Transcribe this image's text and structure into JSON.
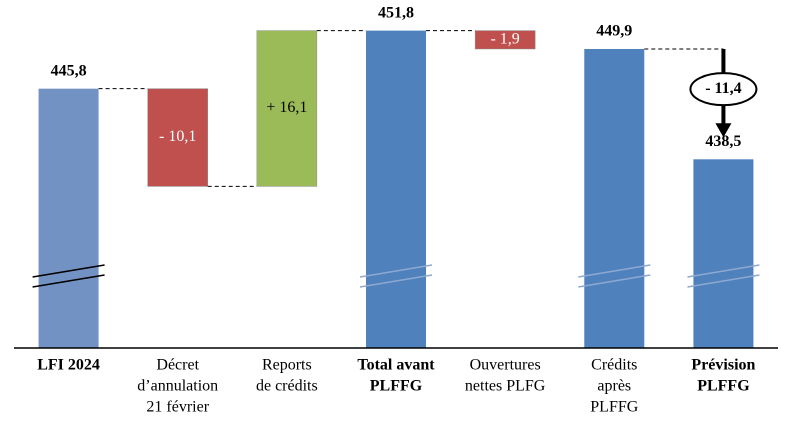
{
  "chart_data": {
    "type": "waterfall",
    "categories": [
      [
        "LFI 2024"
      ],
      [
        "Décret",
        "d’annulation",
        "21 février"
      ],
      [
        "Reports",
        "de crédits"
      ],
      [
        "Total avant",
        "PLFFG"
      ],
      [
        "Ouvertures",
        "nettes PLFG"
      ],
      [
        "Crédits",
        "après",
        "PLFFG"
      ],
      [
        "Prévision",
        "PLFFG"
      ]
    ],
    "measures": [
      "total",
      "relative",
      "relative",
      "total",
      "relative",
      "total",
      "total"
    ],
    "values": [
      445.8,
      -10.1,
      16.1,
      451.8,
      -1.9,
      449.9,
      438.5
    ],
    "value_labels": [
      "445,8",
      "- 10,1",
      "+ 16,1",
      "451,8",
      "- 1,9",
      "449,9",
      "438,5"
    ],
    "colors": [
      "#7192c2",
      "#c0504d",
      "#9bbb59",
      "#4f81bd",
      "#c0504d",
      "#4f81bd",
      "#4f81bd"
    ],
    "bold_categories": [
      0,
      3,
      6
    ],
    "annotation": {
      "text": "- 11,4",
      "value": -11.4
    },
    "ylim": [
      419,
      453
    ],
    "axis_break": true
  }
}
